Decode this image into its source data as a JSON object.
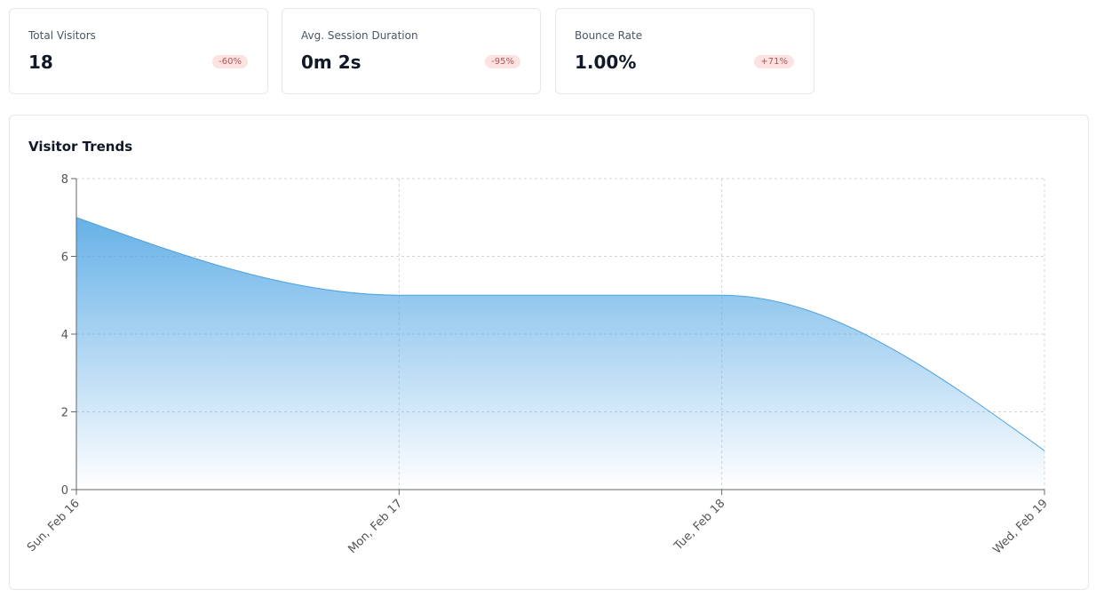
{
  "cards": [
    {
      "label": "Total Visitors",
      "value": "18",
      "change": "-60%"
    },
    {
      "label": "Avg. Session Duration",
      "value": "0m 2s",
      "change": "-95%"
    },
    {
      "label": "Bounce Rate",
      "value": "1.00%",
      "change": "+71%"
    }
  ],
  "chart_data": {
    "type": "area",
    "title": "Visitor Trends",
    "categories": [
      "Sun, Feb 16",
      "Mon, Feb 17",
      "Tue, Feb 18",
      "Wed, Feb 19"
    ],
    "values": [
      7,
      5,
      5,
      1
    ],
    "color": "#4ba3e3",
    "ylim": [
      0,
      8
    ],
    "yticks": [
      0,
      2,
      4,
      6,
      8
    ],
    "grid": true
  }
}
